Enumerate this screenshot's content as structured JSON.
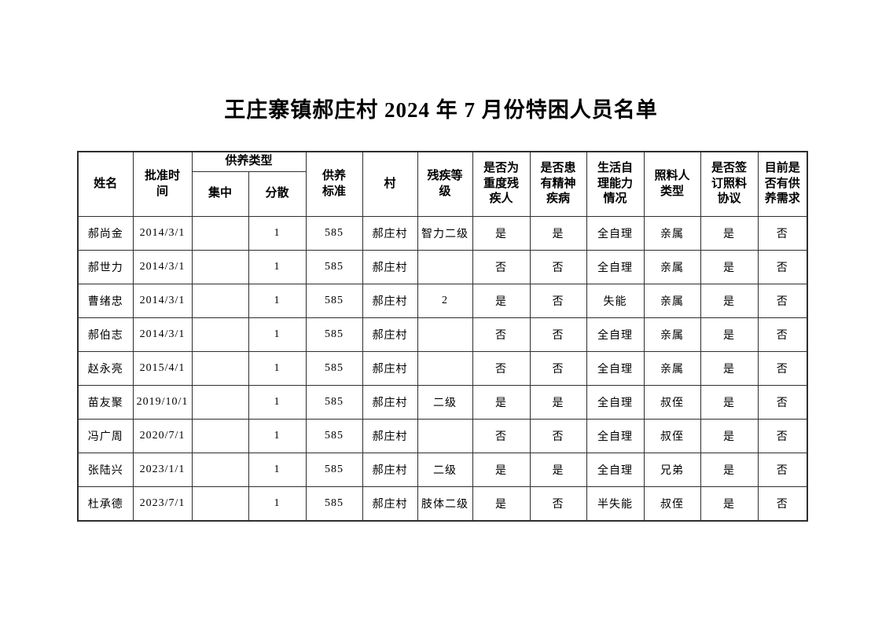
{
  "page": {
    "title": "王庄寨镇郝庄村 2024 年 7 月份特困人员名单",
    "colors": {
      "background": "#ffffff",
      "text": "#000000",
      "table_border": "#2e2e2e"
    }
  },
  "table": {
    "headers": {
      "name": "姓名",
      "approval_time": "批准时间",
      "support_type": "供养类型",
      "centralized": "集中",
      "dispersed": "分散",
      "support_standard": "供养标准",
      "village": "村",
      "disability_level": "残疾等级",
      "severe_disabled": "是否为重度残疾人",
      "mental_illness": "是否患有精神疾病",
      "self_care": "生活自理能力情况",
      "caretaker_type": "照料人类型",
      "care_agreement": "是否签订照料协议",
      "support_need": "目前是否有供养需求"
    },
    "rows": [
      [
        "郝尚金",
        "2014/3/1",
        "",
        "1",
        "585",
        "郝庄村",
        "智力二级",
        "是",
        "是",
        "全自理",
        "亲属",
        "是",
        "否"
      ],
      [
        "郝世力",
        "2014/3/1",
        "",
        "1",
        "585",
        "郝庄村",
        "",
        "否",
        "否",
        "全自理",
        "亲属",
        "是",
        "否"
      ],
      [
        "曹绪忠",
        "2014/3/1",
        "",
        "1",
        "585",
        "郝庄村",
        "2",
        "是",
        "否",
        "失能",
        "亲属",
        "是",
        "否"
      ],
      [
        "郝伯志",
        "2014/3/1",
        "",
        "1",
        "585",
        "郝庄村",
        "",
        "否",
        "否",
        "全自理",
        "亲属",
        "是",
        "否"
      ],
      [
        "赵永亮",
        "2015/4/1",
        "",
        "1",
        "585",
        "郝庄村",
        "",
        "否",
        "否",
        "全自理",
        "亲属",
        "是",
        "否"
      ],
      [
        "苗友聚",
        "2019/10/1",
        "",
        "1",
        "585",
        "郝庄村",
        "二级",
        "是",
        "是",
        "全自理",
        "叔侄",
        "是",
        "否"
      ],
      [
        "冯广周",
        "2020/7/1",
        "",
        "1",
        "585",
        "郝庄村",
        "",
        "否",
        "否",
        "全自理",
        "叔侄",
        "是",
        "否"
      ],
      [
        "张陆兴",
        "2023/1/1",
        "",
        "1",
        "585",
        "郝庄村",
        "二级",
        "是",
        "是",
        "全自理",
        "兄弟",
        "是",
        "否"
      ],
      [
        "杜承德",
        "2023/7/1",
        "",
        "1",
        "585",
        "郝庄村",
        "肢体二级",
        "是",
        "否",
        "半失能",
        "叔侄",
        "是",
        "否"
      ]
    ]
  }
}
